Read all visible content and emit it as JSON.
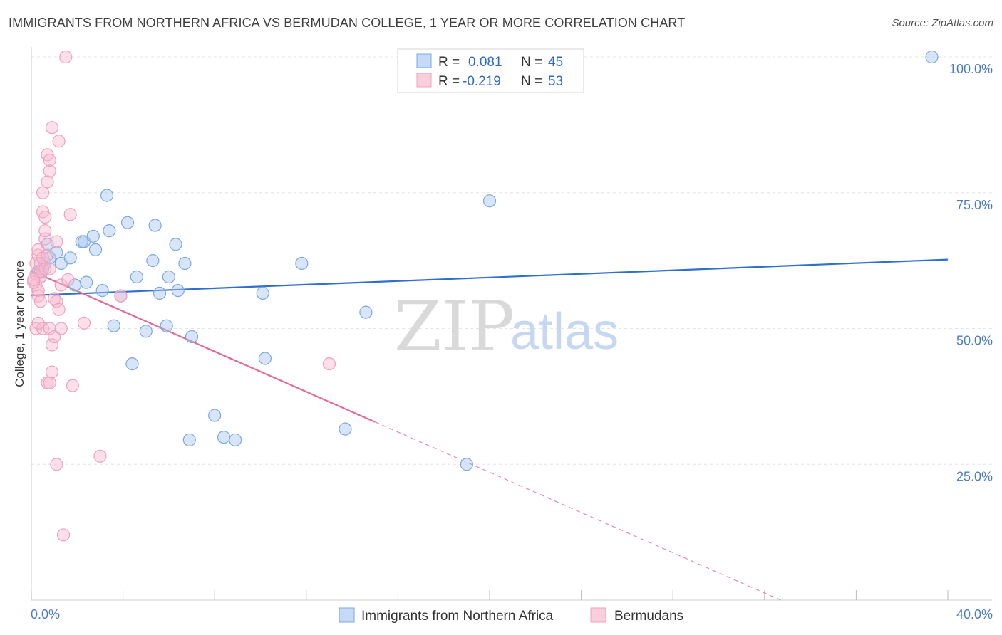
{
  "title": "IMMIGRANTS FROM NORTHERN AFRICA VS BERMUDAN COLLEGE, 1 YEAR OR MORE CORRELATION CHART",
  "source": "Source: ZipAtlas.com",
  "watermark": {
    "zip": "ZIP",
    "atlas": "atlas"
  },
  "chart_data": {
    "type": "scatter",
    "ylabel": "College, 1 year or more",
    "xlabel": "",
    "xlim": [
      0,
      40
    ],
    "ylim": [
      0,
      100
    ],
    "x_tick_labels": {
      "min": "0.0%",
      "max": "40.0%"
    },
    "y_ticks": [
      {
        "value": 100,
        "label": "100.0%"
      },
      {
        "value": 75,
        "label": "75.0%"
      },
      {
        "value": 50,
        "label": "50.0%"
      },
      {
        "value": 25,
        "label": "25.0%"
      }
    ],
    "grid": true,
    "legend_top": [
      {
        "r_label": "R =",
        "r_value": "0.081",
        "n_label": "N =",
        "n_value": "45"
      },
      {
        "r_label": "R =",
        "r_value": "-0.219",
        "n_label": "N =",
        "n_value": "53"
      }
    ],
    "series": [
      {
        "name": "Immigrants from Northern Africa",
        "color": "#7aa9e0",
        "line_color": "#2e6fd0",
        "trend": {
          "x0": 0,
          "y0": 56.1,
          "x1": 40,
          "y1": 62.7
        },
        "points": [
          [
            0.3,
            60.5
          ],
          [
            0.4,
            59.5
          ],
          [
            0.6,
            62
          ],
          [
            0.7,
            65.5
          ],
          [
            0.8,
            63
          ],
          [
            1.1,
            64
          ],
          [
            1.3,
            62
          ],
          [
            1.7,
            63
          ],
          [
            1.9,
            58
          ],
          [
            2.4,
            58.5
          ],
          [
            2.2,
            66
          ],
          [
            2.3,
            66
          ],
          [
            2.7,
            67
          ],
          [
            2.8,
            64.5
          ],
          [
            3.1,
            57
          ],
          [
            3.3,
            74.5
          ],
          [
            3.4,
            68
          ],
          [
            3.6,
            50.5
          ],
          [
            3.9,
            56
          ],
          [
            4.2,
            69.5
          ],
          [
            4.4,
            43.5
          ],
          [
            4.6,
            59.5
          ],
          [
            5.0,
            49.5
          ],
          [
            5.3,
            62.5
          ],
          [
            5.4,
            69
          ],
          [
            5.6,
            56.5
          ],
          [
            5.9,
            50.5
          ],
          [
            6.0,
            59.5
          ],
          [
            6.3,
            65.5
          ],
          [
            6.4,
            57
          ],
          [
            6.7,
            62
          ],
          [
            7.0,
            48.5
          ],
          [
            6.9,
            29.5
          ],
          [
            8.0,
            34
          ],
          [
            8.4,
            30
          ],
          [
            8.9,
            29.5
          ],
          [
            10.1,
            56.5
          ],
          [
            10.2,
            44.5
          ],
          [
            11.8,
            62
          ],
          [
            13.7,
            31.5
          ],
          [
            14.6,
            53
          ],
          [
            19.0,
            25
          ],
          [
            20.0,
            73.5
          ],
          [
            39.3,
            100
          ],
          [
            0.5,
            61
          ]
        ]
      },
      {
        "name": "Bermudans",
        "color": "#f0a0bc",
        "line_color": "#e06a98",
        "trend": {
          "x0": 0,
          "y0": 60.6,
          "x1": 15.0,
          "y1": 32.8
        },
        "trend_dashed": {
          "x0": 15.0,
          "y0": 32.8,
          "x1": 40,
          "y1": -13.5
        },
        "points": [
          [
            0.2,
            58
          ],
          [
            0.2,
            60
          ],
          [
            0.2,
            62
          ],
          [
            0.2,
            50
          ],
          [
            0.3,
            63.5
          ],
          [
            0.3,
            56
          ],
          [
            0.3,
            57
          ],
          [
            0.3,
            64.5
          ],
          [
            0.4,
            62
          ],
          [
            0.4,
            55
          ],
          [
            0.4,
            59.5
          ],
          [
            0.4,
            60.5
          ],
          [
            0.5,
            71.5
          ],
          [
            0.5,
            75
          ],
          [
            0.5,
            63
          ],
          [
            0.5,
            50
          ],
          [
            0.6,
            70.5
          ],
          [
            0.6,
            66.5
          ],
          [
            0.6,
            68
          ],
          [
            0.6,
            61
          ],
          [
            0.7,
            77
          ],
          [
            0.7,
            82
          ],
          [
            0.7,
            63.5
          ],
          [
            0.7,
            40
          ],
          [
            0.8,
            79
          ],
          [
            0.8,
            81
          ],
          [
            0.8,
            61
          ],
          [
            0.8,
            50
          ],
          [
            0.8,
            40
          ],
          [
            0.9,
            87
          ],
          [
            0.9,
            42
          ],
          [
            0.9,
            47
          ],
          [
            1.0,
            48.5
          ],
          [
            1.0,
            55.5
          ],
          [
            1.1,
            66
          ],
          [
            1.1,
            55
          ],
          [
            1.1,
            25
          ],
          [
            1.2,
            53.5
          ],
          [
            1.2,
            84.5
          ],
          [
            1.3,
            58
          ],
          [
            1.3,
            50
          ],
          [
            1.4,
            12
          ],
          [
            1.5,
            100
          ],
          [
            1.7,
            71
          ],
          [
            1.8,
            39.5
          ],
          [
            2.3,
            51
          ],
          [
            3.0,
            26.5
          ],
          [
            3.9,
            56
          ],
          [
            13.0,
            43.5
          ],
          [
            0.1,
            58.5
          ],
          [
            0.1,
            59
          ],
          [
            0.3,
            51
          ],
          [
            1.6,
            59
          ]
        ]
      }
    ]
  }
}
